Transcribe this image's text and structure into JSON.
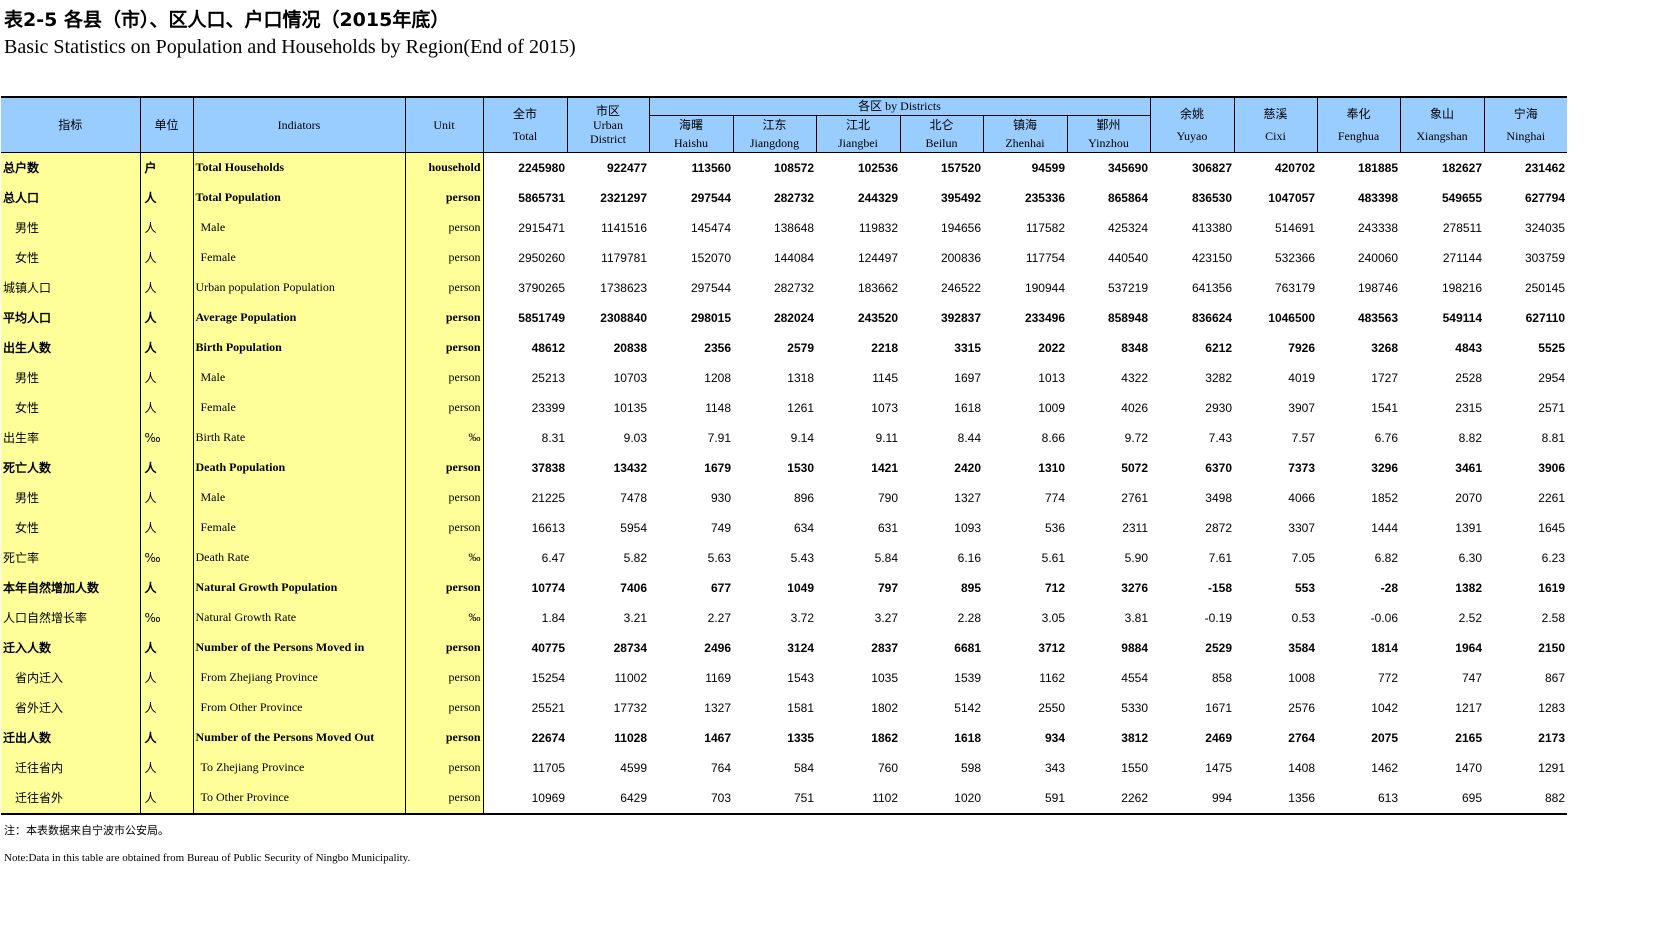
{
  "title": {
    "cn": "表2-5  各县（市）、区人口、户口情况（2015年底）",
    "en": "Basic Statistics on Population and Households by Region(End of 2015)"
  },
  "header": {
    "indicator_cn": "指标",
    "unit_cn": "单位",
    "indicator_en": "Indiators",
    "unit_en": "Unit",
    "districts_group": "各区 by Districts",
    "columns": [
      {
        "cn": "全市",
        "en": "Total"
      },
      {
        "cn": "市区",
        "en1": "Urban",
        "en2": "District"
      },
      {
        "cn": "海曙",
        "en": "Haishu"
      },
      {
        "cn": "江东",
        "en": "Jiangdong"
      },
      {
        "cn": "江北",
        "en": "Jiangbei"
      },
      {
        "cn": "北仑",
        "en": "Beilun"
      },
      {
        "cn": "镇海",
        "en": "Zhenhai"
      },
      {
        "cn": "鄞州",
        "en": "Yinzhou"
      },
      {
        "cn": "余姚",
        "en": "Yuyao"
      },
      {
        "cn": "慈溪",
        "en": "Cixi"
      },
      {
        "cn": "奉化",
        "en": "Fenghua"
      },
      {
        "cn": "象山",
        "en": "Xiangshan"
      },
      {
        "cn": "宁海",
        "en": "Ninghai"
      }
    ]
  },
  "rows": [
    {
      "cn": "总户数",
      "unit": "户",
      "en": "Total Households",
      "en_unit": "household",
      "bold": true,
      "sub": false,
      "values": [
        "2245980",
        "922477",
        "113560",
        "108572",
        "102536",
        "157520",
        "94599",
        "345690",
        "306827",
        "420702",
        "181885",
        "182627",
        "231462"
      ]
    },
    {
      "cn": "总人口",
      "unit": "人",
      "en": "Total Population",
      "en_unit": "person",
      "bold": true,
      "sub": false,
      "values": [
        "5865731",
        "2321297",
        "297544",
        "282732",
        "244329",
        "395492",
        "235336",
        "865864",
        "836530",
        "1047057",
        "483398",
        "549655",
        "627794"
      ]
    },
    {
      "cn": "男性",
      "unit": "人",
      "en": "Male",
      "en_unit": "person",
      "bold": false,
      "sub": true,
      "values": [
        "2915471",
        "1141516",
        "145474",
        "138648",
        "119832",
        "194656",
        "117582",
        "425324",
        "413380",
        "514691",
        "243338",
        "278511",
        "324035"
      ]
    },
    {
      "cn": "女性",
      "unit": "人",
      "en": "Female",
      "en_unit": "person",
      "bold": false,
      "sub": true,
      "values": [
        "2950260",
        "1179781",
        "152070",
        "144084",
        "124497",
        "200836",
        "117754",
        "440540",
        "423150",
        "532366",
        "240060",
        "271144",
        "303759"
      ]
    },
    {
      "cn": "城镇人口",
      "unit": "人",
      "en": "Urban population Population",
      "en_unit": "person",
      "bold": false,
      "sub": false,
      "values": [
        "3790265",
        "1738623",
        "297544",
        "282732",
        "183662",
        "246522",
        "190944",
        "537219",
        "641356",
        "763179",
        "198746",
        "198216",
        "250145"
      ]
    },
    {
      "cn": "平均人口",
      "unit": "人",
      "en": "Average Population",
      "en_unit": "person",
      "bold": true,
      "sub": false,
      "values": [
        "5851749",
        "2308840",
        "298015",
        "282024",
        "243520",
        "392837",
        "233496",
        "858948",
        "836624",
        "1046500",
        "483563",
        "549114",
        "627110"
      ]
    },
    {
      "cn": "出生人数",
      "unit": "人",
      "en": "Birth Population",
      "en_unit": "person",
      "bold": true,
      "sub": false,
      "values": [
        "48612",
        "20838",
        "2356",
        "2579",
        "2218",
        "3315",
        "2022",
        "8348",
        "6212",
        "7926",
        "3268",
        "4843",
        "5525"
      ]
    },
    {
      "cn": "男性",
      "unit": "人",
      "en": "Male",
      "en_unit": "person",
      "bold": false,
      "sub": true,
      "values": [
        "25213",
        "10703",
        "1208",
        "1318",
        "1145",
        "1697",
        "1013",
        "4322",
        "3282",
        "4019",
        "1727",
        "2528",
        "2954"
      ]
    },
    {
      "cn": "女性",
      "unit": "人",
      "en": "Female",
      "en_unit": "person",
      "bold": false,
      "sub": true,
      "values": [
        "23399",
        "10135",
        "1148",
        "1261",
        "1073",
        "1618",
        "1009",
        "4026",
        "2930",
        "3907",
        "1541",
        "2315",
        "2571"
      ]
    },
    {
      "cn": "出生率",
      "unit": "‰",
      "en": "Birth Rate",
      "en_unit": "‰",
      "bold": false,
      "sub": false,
      "values": [
        "8.31",
        "9.03",
        "7.91",
        "9.14",
        "9.11",
        "8.44",
        "8.66",
        "9.72",
        "7.43",
        "7.57",
        "6.76",
        "8.82",
        "8.81"
      ]
    },
    {
      "cn": "死亡人数",
      "unit": "人",
      "en": "Death Population",
      "en_unit": "person",
      "bold": true,
      "sub": false,
      "values": [
        "37838",
        "13432",
        "1679",
        "1530",
        "1421",
        "2420",
        "1310",
        "5072",
        "6370",
        "7373",
        "3296",
        "3461",
        "3906"
      ]
    },
    {
      "cn": "男性",
      "unit": "人",
      "en": "Male",
      "en_unit": "person",
      "bold": false,
      "sub": true,
      "values": [
        "21225",
        "7478",
        "930",
        "896",
        "790",
        "1327",
        "774",
        "2761",
        "3498",
        "4066",
        "1852",
        "2070",
        "2261"
      ]
    },
    {
      "cn": "女性",
      "unit": "人",
      "en": "Female",
      "en_unit": "person",
      "bold": false,
      "sub": true,
      "values": [
        "16613",
        "5954",
        "749",
        "634",
        "631",
        "1093",
        "536",
        "2311",
        "2872",
        "3307",
        "1444",
        "1391",
        "1645"
      ]
    },
    {
      "cn": "死亡率",
      "unit": "‰",
      "en": "Death Rate",
      "en_unit": "‰",
      "bold": false,
      "sub": false,
      "values": [
        "6.47",
        "5.82",
        "5.63",
        "5.43",
        "5.84",
        "6.16",
        "5.61",
        "5.90",
        "7.61",
        "7.05",
        "6.82",
        "6.30",
        "6.23"
      ]
    },
    {
      "cn": "本年自然增加人数",
      "unit": "人",
      "en": "Natural Growth Population",
      "en_unit": "person",
      "bold": true,
      "sub": false,
      "values": [
        "10774",
        "7406",
        "677",
        "1049",
        "797",
        "895",
        "712",
        "3276",
        "-158",
        "553",
        "-28",
        "1382",
        "1619"
      ]
    },
    {
      "cn": "人口自然增长率",
      "unit": "‰",
      "en": "Natural Growth Rate",
      "en_unit": "‰",
      "bold": false,
      "sub": false,
      "values": [
        "1.84",
        "3.21",
        "2.27",
        "3.72",
        "3.27",
        "2.28",
        "3.05",
        "3.81",
        "-0.19",
        "0.53",
        "-0.06",
        "2.52",
        "2.58"
      ]
    },
    {
      "cn": "迁入人数",
      "unit": "人",
      "en": "Number of the Persons Moved in",
      "en_unit": "person",
      "bold": true,
      "sub": false,
      "values": [
        "40775",
        "28734",
        "2496",
        "3124",
        "2837",
        "6681",
        "3712",
        "9884",
        "2529",
        "3584",
        "1814",
        "1964",
        "2150"
      ]
    },
    {
      "cn": "省内迁入",
      "unit": "人",
      "en": "From Zhejiang Province",
      "en_unit": "person",
      "bold": false,
      "sub": true,
      "values": [
        "15254",
        "11002",
        "1169",
        "1543",
        "1035",
        "1539",
        "1162",
        "4554",
        "858",
        "1008",
        "772",
        "747",
        "867"
      ]
    },
    {
      "cn": "省外迁入",
      "unit": "人",
      "en": "From Other Province",
      "en_unit": "person",
      "bold": false,
      "sub": true,
      "values": [
        "25521",
        "17732",
        "1327",
        "1581",
        "1802",
        "5142",
        "2550",
        "5330",
        "1671",
        "2576",
        "1042",
        "1217",
        "1283"
      ]
    },
    {
      "cn": "迁出人数",
      "unit": "人",
      "en": "Number of the Persons Moved Out",
      "en_unit": "person",
      "bold": true,
      "sub": false,
      "values": [
        "22674",
        "11028",
        "1467",
        "1335",
        "1862",
        "1618",
        "934",
        "3812",
        "2469",
        "2764",
        "2075",
        "2165",
        "2173"
      ]
    },
    {
      "cn": "迁往省内",
      "unit": "人",
      "en": "To Zhejiang Province",
      "en_unit": "person",
      "bold": false,
      "sub": true,
      "values": [
        "11705",
        "4599",
        "764",
        "584",
        "760",
        "598",
        "343",
        "1550",
        "1475",
        "1408",
        "1462",
        "1470",
        "1291"
      ]
    },
    {
      "cn": "迁往省外",
      "unit": "人",
      "en": "To Other Province",
      "en_unit": "person",
      "bold": false,
      "sub": true,
      "values": [
        "10969",
        "6429",
        "703",
        "751",
        "1102",
        "1020",
        "591",
        "2262",
        "994",
        "1356",
        "613",
        "695",
        "882"
      ]
    }
  ],
  "notes": {
    "cn": "注：本表数据来自宁波市公安局。",
    "en": "Note:Data in this table are obtained from Bureau of Public Security of Ningbo Municipality."
  }
}
